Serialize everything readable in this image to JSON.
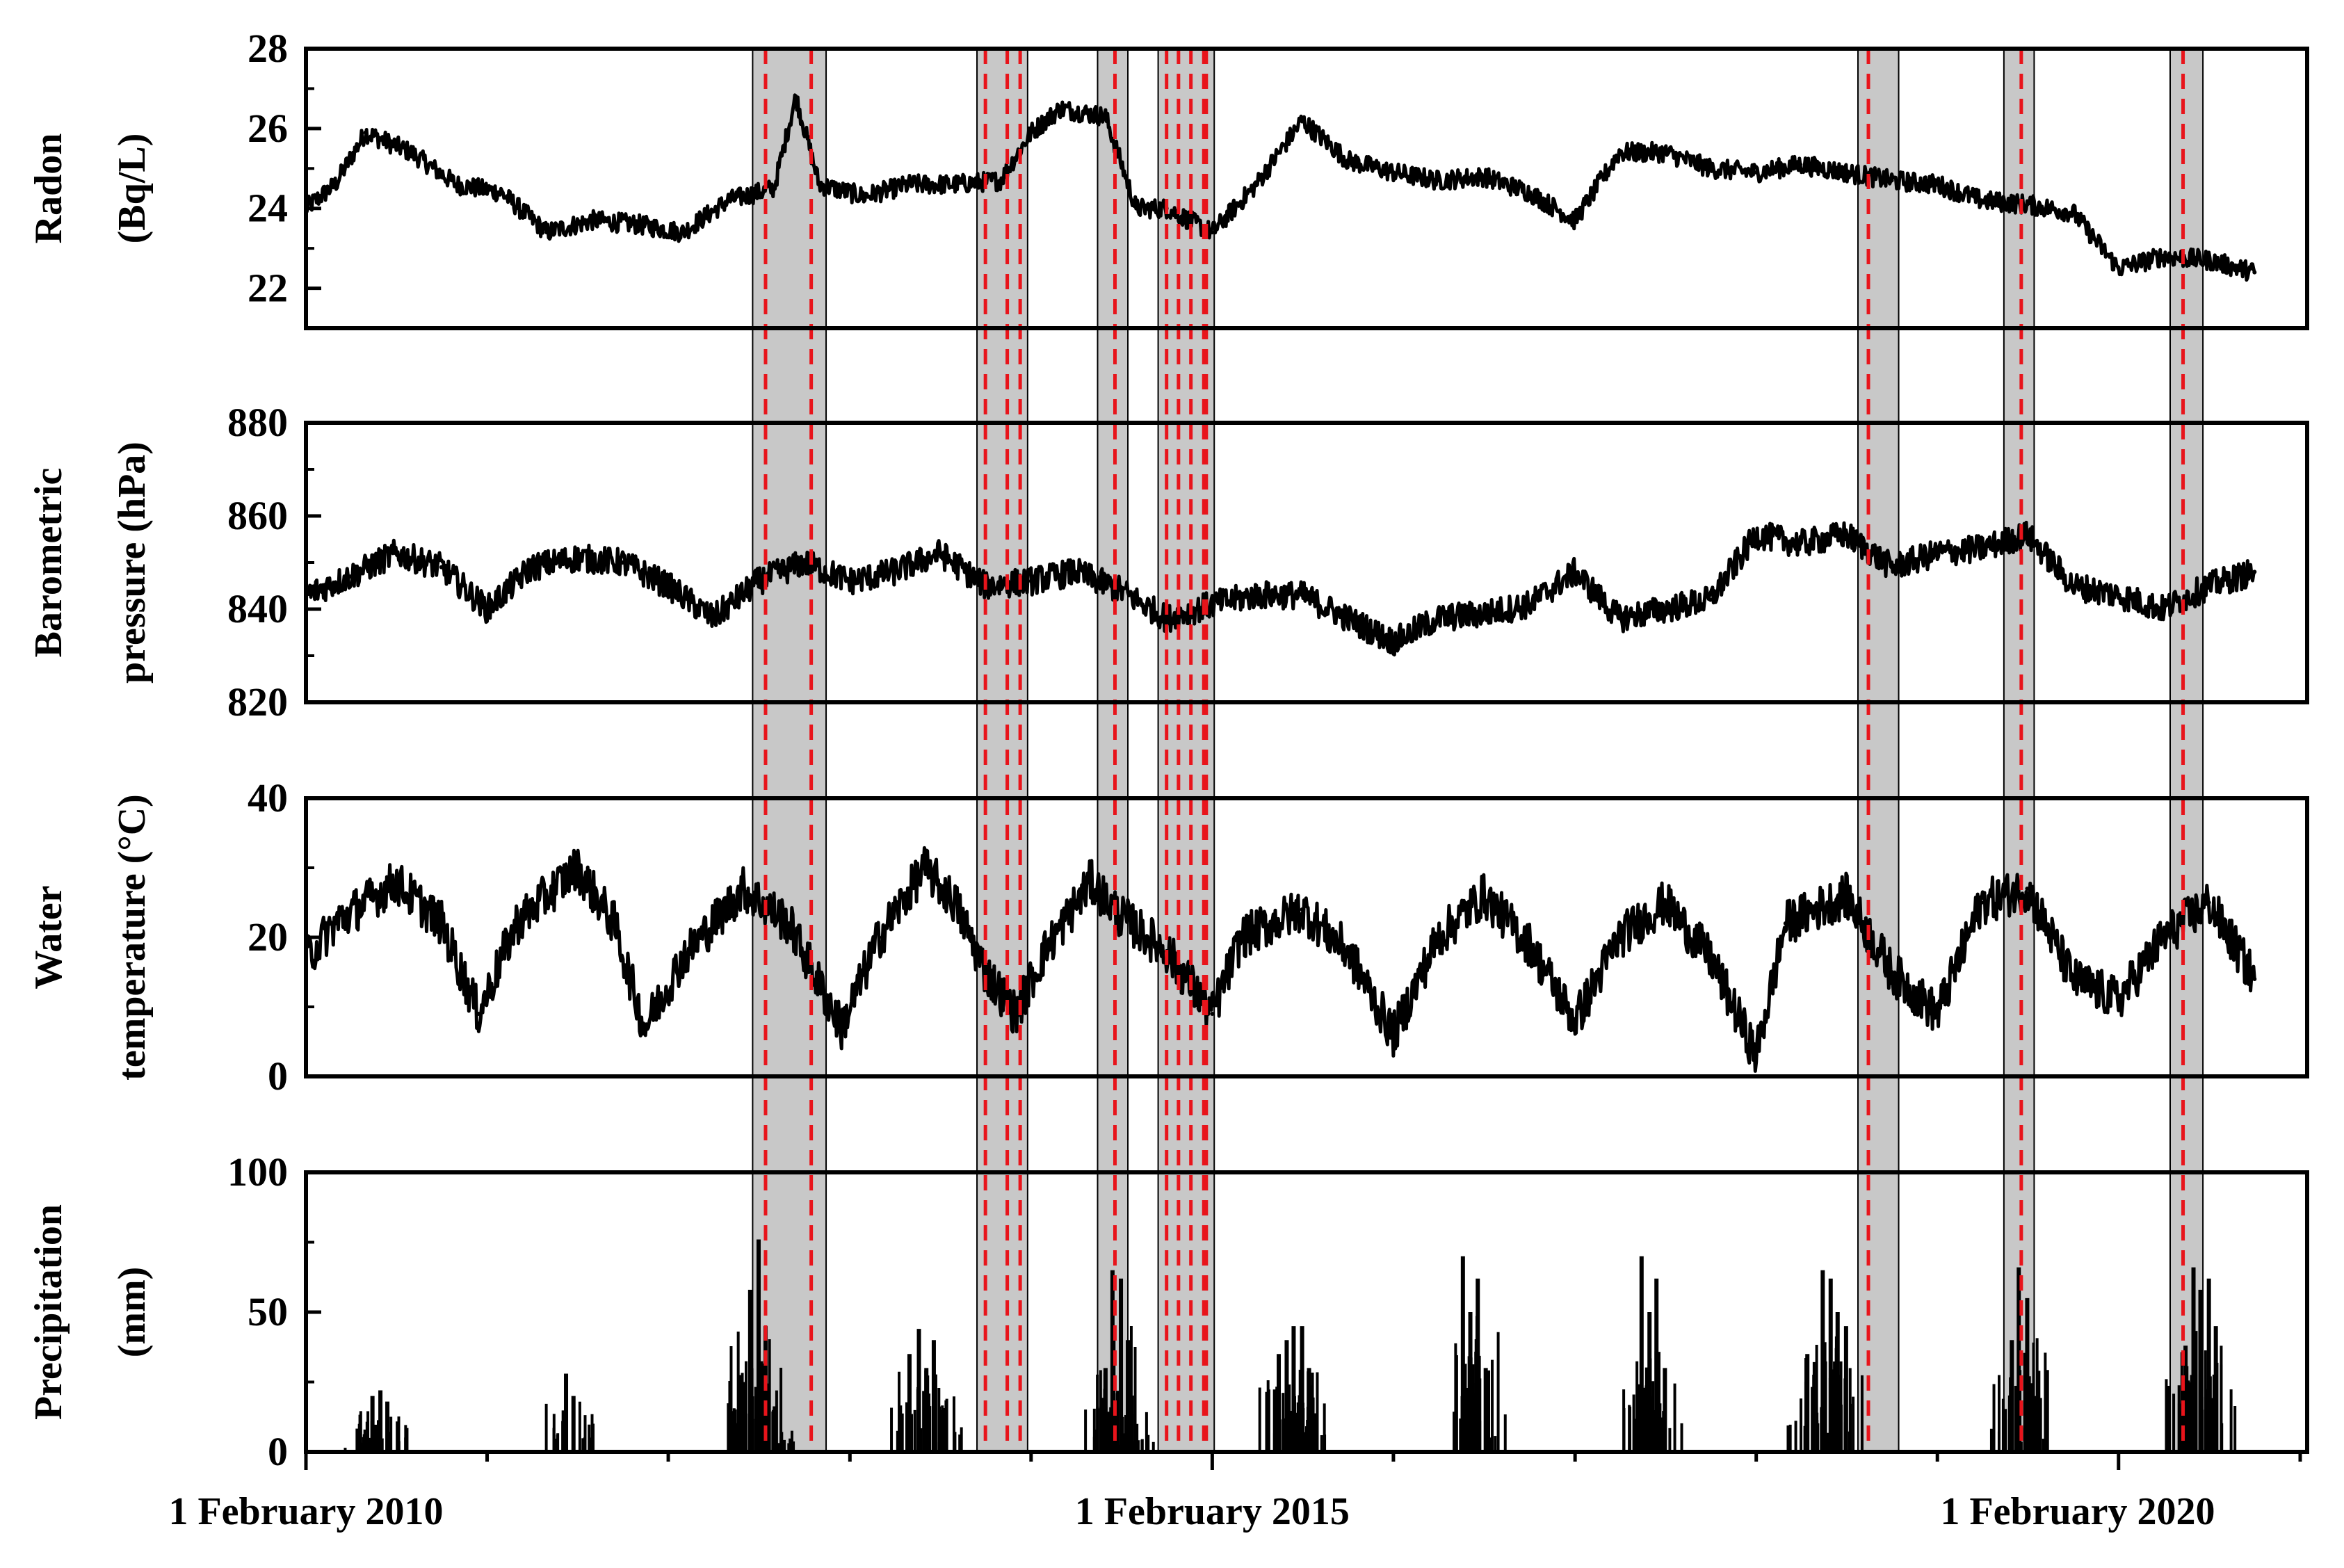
{
  "chart_data": [
    {
      "type": "line",
      "panel": "radon",
      "ylabel_lines": [
        "Radon",
        "(Bq/L)"
      ],
      "ylim": [
        21,
        28
      ],
      "yticks": [
        22,
        24,
        26,
        28
      ],
      "series": [
        {
          "color": "#000000",
          "x": [
            "2010-02-01",
            "2010-04-01",
            "2010-06-01",
            "2010-09-01",
            "2010-12-01",
            "2011-03-01",
            "2011-06-01",
            "2011-09-01",
            "2011-12-01",
            "2012-03-01",
            "2012-06-01",
            "2012-09-01",
            "2012-10-15",
            "2012-12-01",
            "2013-03-01",
            "2013-06-01",
            "2013-09-01",
            "2013-12-01",
            "2014-02-01",
            "2014-04-01",
            "2014-07-01",
            "2014-09-01",
            "2014-11-01",
            "2015-02-01",
            "2015-05-01",
            "2015-08-01",
            "2015-11-01",
            "2016-02-01",
            "2016-05-01",
            "2016-08-01",
            "2016-11-01",
            "2017-02-01",
            "2017-05-01",
            "2017-08-01",
            "2017-11-01",
            "2018-02-01",
            "2018-05-01",
            "2018-08-01",
            "2018-11-01",
            "2019-02-01",
            "2019-05-01",
            "2019-08-01",
            "2019-11-01",
            "2020-02-01",
            "2020-05-01",
            "2020-08-01",
            "2020-11-01"
          ],
          "y": [
            24.0,
            24.6,
            25.9,
            25.4,
            24.6,
            24.4,
            23.4,
            23.7,
            23.6,
            23.4,
            24.2,
            24.5,
            26.8,
            24.6,
            24.3,
            24.6,
            24.6,
            24.7,
            25.9,
            26.5,
            26.3,
            24.0,
            24.0,
            23.4,
            24.6,
            26.2,
            25.2,
            24.9,
            24.7,
            24.8,
            24.4,
            23.7,
            25.4,
            25.4,
            25.0,
            24.9,
            25.1,
            24.9,
            24.7,
            24.6,
            24.2,
            24.1,
            23.9,
            22.5,
            22.8,
            22.7,
            22.4
          ]
        }
      ]
    },
    {
      "type": "line",
      "panel": "pressure",
      "ylabel_lines": [
        "Barometric",
        "pressure (hPa)"
      ],
      "ylim": [
        820,
        880
      ],
      "yticks": [
        820,
        840,
        860,
        880
      ],
      "series": [
        {
          "color": "#000000",
          "x": [
            "2010-02-01",
            "2010-05-01",
            "2010-08-01",
            "2010-11-01",
            "2011-02-01",
            "2011-05-01",
            "2011-08-01",
            "2011-11-01",
            "2012-02-01",
            "2012-05-01",
            "2012-08-01",
            "2012-11-01",
            "2013-02-01",
            "2013-05-01",
            "2013-08-01",
            "2013-11-01",
            "2014-02-01",
            "2014-05-01",
            "2014-08-01",
            "2014-11-01",
            "2015-02-01",
            "2015-05-01",
            "2015-08-01",
            "2015-11-01",
            "2016-02-01",
            "2016-05-01",
            "2016-08-01",
            "2016-11-01",
            "2017-02-01",
            "2017-05-01",
            "2017-08-01",
            "2017-11-01",
            "2018-02-01",
            "2018-05-01",
            "2018-08-01",
            "2018-11-01",
            "2019-02-01",
            "2019-05-01",
            "2019-08-01",
            "2019-11-01",
            "2020-02-01",
            "2020-05-01",
            "2020-08-01",
            "2020-11-01"
          ],
          "y": [
            843,
            847,
            852,
            849,
            840,
            849,
            851,
            850,
            845,
            838,
            846,
            850,
            846,
            848,
            852,
            845,
            846,
            848,
            844,
            838,
            841,
            843,
            843,
            838,
            833,
            838,
            839,
            841,
            848,
            838,
            840,
            842,
            856,
            854,
            856,
            849,
            852,
            853,
            856,
            845,
            843,
            840,
            845,
            848
          ]
        }
      ]
    },
    {
      "type": "line",
      "panel": "water_temperature",
      "ylabel_lines": [
        "Water",
        "temperature (°C)"
      ],
      "ylim": [
        0,
        40
      ],
      "yticks": [
        0,
        20,
        40
      ],
      "series": [
        {
          "color": "#000000",
          "x": [
            "2010-02-01",
            "2010-04-01",
            "2010-08-01",
            "2010-11-01",
            "2011-01-15",
            "2011-04-01",
            "2011-08-01",
            "2011-10-15",
            "2011-12-15",
            "2012-03-01",
            "2012-07-01",
            "2012-10-01",
            "2013-01-15",
            "2013-04-01",
            "2013-07-01",
            "2013-09-01",
            "2013-11-01",
            "2014-01-01",
            "2014-03-01",
            "2014-06-01",
            "2014-08-01",
            "2014-11-01",
            "2015-02-01",
            "2015-04-01",
            "2015-08-01",
            "2015-11-01",
            "2016-02-01",
            "2016-05-01",
            "2016-08-01",
            "2016-11-01",
            "2017-02-01",
            "2017-05-01",
            "2017-08-01",
            "2017-11-01",
            "2018-02-01",
            "2018-04-01",
            "2018-08-01",
            "2018-11-01",
            "2019-02-01",
            "2019-05-01",
            "2019-08-01",
            "2019-11-01",
            "2020-02-01",
            "2020-05-01",
            "2020-08-01",
            "2020-11-01"
          ],
          "y": [
            17,
            22,
            28,
            22,
            9,
            22,
            30,
            22,
            7,
            17,
            27,
            22,
            7,
            20,
            30,
            25,
            15,
            9,
            18,
            28,
            23,
            18,
            9,
            20,
            24,
            18,
            6,
            20,
            26,
            19,
            8,
            20,
            25,
            17,
            3,
            22,
            26,
            15,
            9,
            25,
            27,
            14,
            11,
            20,
            25,
            14
          ]
        }
      ]
    },
    {
      "type": "bar",
      "panel": "precipitation",
      "ylabel_lines": [
        "Precipitation",
        "(mm)"
      ],
      "ylim": [
        0,
        100
      ],
      "yticks": [
        0,
        50,
        100
      ],
      "x": [
        "2010-06-01",
        "2010-06-15",
        "2010-07-01",
        "2010-07-15",
        "2011-07-10",
        "2011-07-25",
        "2012-07-01",
        "2012-07-15",
        "2012-08-01",
        "2012-08-15",
        "2012-09-01",
        "2013-06-01",
        "2013-06-20",
        "2013-07-05",
        "2013-07-20",
        "2013-08-05",
        "2014-07-01",
        "2014-07-15",
        "2014-08-01",
        "2014-08-15",
        "2014-09-01",
        "2015-06-15",
        "2015-07-01",
        "2015-07-15",
        "2015-08-01",
        "2015-08-15",
        "2016-06-20",
        "2016-07-05",
        "2016-07-20",
        "2016-08-05",
        "2017-06-15",
        "2017-07-01",
        "2017-07-15",
        "2017-08-01",
        "2018-05-15",
        "2018-06-15",
        "2018-07-01",
        "2018-07-15",
        "2018-08-01",
        "2019-07-01",
        "2019-07-15",
        "2019-08-01",
        "2019-08-15",
        "2020-06-15",
        "2020-07-01",
        "2020-07-15",
        "2020-08-01",
        "2020-08-15"
      ],
      "values": [
        8,
        20,
        22,
        18,
        28,
        20,
        25,
        58,
        76,
        45,
        15,
        35,
        44,
        30,
        40,
        15,
        30,
        65,
        62,
        40,
        10,
        35,
        40,
        45,
        45,
        30,
        70,
        50,
        62,
        30,
        70,
        50,
        62,
        30,
        35,
        65,
        62,
        50,
        45,
        40,
        66,
        55,
        20,
        38,
        66,
        58,
        62,
        45
      ],
      "xlim": [
        "2010-02-01",
        "2021-02-15"
      ]
    }
  ],
  "x_axis_labels": [
    "1 February 2010",
    "1 February 2015",
    "1 February 2020"
  ],
  "highlight_bands": [
    {
      "start": "2012-07-20",
      "end": "2012-12-15"
    },
    {
      "start": "2013-10-15",
      "end": "2014-01-25"
    },
    {
      "start": "2014-06-15",
      "end": "2014-08-15"
    },
    {
      "start": "2014-10-15",
      "end": "2015-02-05"
    },
    {
      "start": "2018-08-25",
      "end": "2018-11-15"
    },
    {
      "start": "2019-06-15",
      "end": "2019-08-15"
    },
    {
      "start": "2020-05-15",
      "end": "2020-07-20"
    }
  ],
  "event_lines": [
    "2012-08-15",
    "2012-11-15",
    "2013-11-01",
    "2013-12-15",
    "2014-01-10",
    "2014-07-20",
    "2014-11-01",
    "2014-11-25",
    "2014-12-20",
    "2015-01-15",
    "2015-01-20",
    "2018-09-15",
    "2019-07-20",
    "2020-06-10"
  ],
  "colors": {
    "band": "#c8c8c8",
    "event_line": "#e8141b",
    "series": "#000000"
  }
}
